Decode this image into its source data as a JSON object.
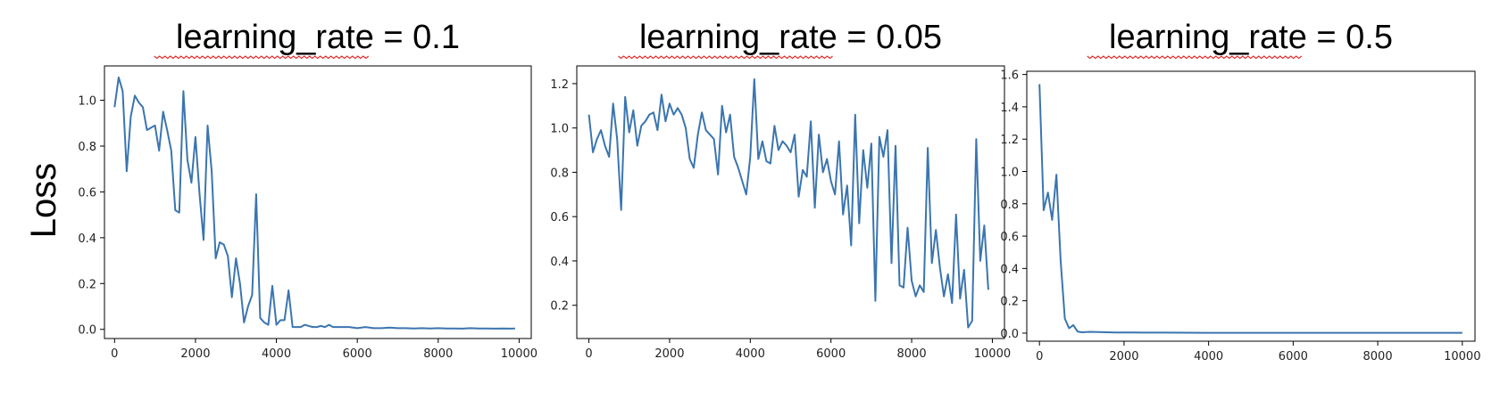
{
  "figure": {
    "ylabel": "Loss"
  },
  "chart_data": [
    {
      "type": "line",
      "title": "learning_rate = 0.1",
      "xlim": [
        -250,
        10300
      ],
      "ylim": [
        -0.04,
        1.15
      ],
      "xticks": [
        0,
        2000,
        4000,
        6000,
        8000,
        10000
      ],
      "yticks": [
        0.0,
        0.2,
        0.4,
        0.6,
        0.8,
        1.0
      ],
      "series": [
        {
          "color": "#3b75af",
          "x": [
            0,
            100,
            200,
            300,
            400,
            500,
            600,
            700,
            800,
            900,
            1000,
            1100,
            1200,
            1300,
            1400,
            1500,
            1600,
            1700,
            1800,
            1900,
            2000,
            2100,
            2200,
            2300,
            2400,
            2500,
            2600,
            2700,
            2800,
            2900,
            3000,
            3100,
            3200,
            3300,
            3400,
            3500,
            3600,
            3700,
            3800,
            3900,
            4000,
            4100,
            4200,
            4300,
            4400,
            4500,
            4600,
            4700,
            4800,
            4900,
            5000,
            5100,
            5200,
            5300,
            5400,
            5600,
            5800,
            6000,
            6200,
            6400,
            6600,
            6800,
            7000,
            7200,
            7400,
            7600,
            7800,
            8000,
            8200,
            8400,
            8600,
            8800,
            9000,
            9200,
            9400,
            9600,
            9800,
            9900
          ],
          "y": [
            0.97,
            1.1,
            1.04,
            0.69,
            0.93,
            1.02,
            0.99,
            0.97,
            0.87,
            0.88,
            0.89,
            0.78,
            0.95,
            0.87,
            0.78,
            0.52,
            0.51,
            1.04,
            0.74,
            0.64,
            0.84,
            0.59,
            0.39,
            0.89,
            0.69,
            0.31,
            0.38,
            0.37,
            0.32,
            0.14,
            0.31,
            0.2,
            0.03,
            0.1,
            0.15,
            0.59,
            0.05,
            0.03,
            0.02,
            0.19,
            0.02,
            0.04,
            0.04,
            0.17,
            0.01,
            0.01,
            0.01,
            0.02,
            0.015,
            0.01,
            0.01,
            0.015,
            0.01,
            0.02,
            0.01,
            0.01,
            0.01,
            0.005,
            0.01,
            0.005,
            0.005,
            0.008,
            0.005,
            0.005,
            0.004,
            0.005,
            0.004,
            0.005,
            0.004,
            0.004,
            0.003,
            0.005,
            0.004,
            0.004,
            0.003,
            0.004,
            0.003,
            0.004
          ]
        }
      ]
    },
    {
      "type": "line",
      "title": "learning_rate = 0.05",
      "xlim": [
        -300,
        10300
      ],
      "ylim": [
        0.05,
        1.28
      ],
      "xticks": [
        0,
        2000,
        4000,
        6000,
        8000,
        10000
      ],
      "yticks": [
        0.2,
        0.4,
        0.6,
        0.8,
        1.0,
        1.2
      ],
      "series": [
        {
          "color": "#3b75af",
          "x": [
            0,
            100,
            200,
            300,
            400,
            500,
            600,
            700,
            800,
            900,
            1000,
            1100,
            1200,
            1300,
            1400,
            1500,
            1600,
            1700,
            1800,
            1900,
            2000,
            2100,
            2200,
            2300,
            2400,
            2500,
            2600,
            2700,
            2800,
            2900,
            3000,
            3100,
            3200,
            3300,
            3400,
            3500,
            3600,
            3700,
            3800,
            3900,
            4000,
            4100,
            4200,
            4300,
            4400,
            4500,
            4600,
            4700,
            4800,
            4900,
            5000,
            5100,
            5200,
            5300,
            5400,
            5500,
            5600,
            5700,
            5800,
            5900,
            6000,
            6100,
            6200,
            6300,
            6400,
            6500,
            6600,
            6700,
            6800,
            6900,
            7000,
            7100,
            7200,
            7300,
            7400,
            7500,
            7600,
            7700,
            7800,
            7900,
            8000,
            8100,
            8200,
            8300,
            8400,
            8500,
            8600,
            8700,
            8800,
            8900,
            9000,
            9100,
            9200,
            9300,
            9400,
            9500,
            9600,
            9700,
            9800,
            9900
          ],
          "y": [
            1.06,
            0.89,
            0.95,
            0.99,
            0.92,
            0.87,
            1.11,
            0.95,
            0.63,
            1.14,
            0.98,
            1.08,
            0.92,
            1.01,
            1.03,
            1.06,
            1.07,
            0.99,
            1.15,
            1.03,
            1.11,
            1.06,
            1.09,
            1.06,
            1.0,
            0.86,
            0.82,
            0.97,
            1.07,
            0.99,
            0.97,
            0.95,
            0.79,
            1.1,
            0.98,
            1.06,
            0.87,
            0.82,
            0.76,
            0.7,
            0.87,
            1.22,
            0.86,
            0.94,
            0.85,
            0.84,
            1.01,
            0.9,
            0.94,
            0.92,
            0.89,
            0.97,
            0.69,
            0.81,
            0.78,
            1.03,
            0.64,
            0.97,
            0.8,
            0.86,
            0.76,
            0.7,
            0.94,
            0.61,
            0.74,
            0.47,
            1.06,
            0.57,
            0.9,
            0.73,
            0.93,
            0.22,
            0.96,
            0.87,
            0.99,
            0.39,
            0.92,
            0.29,
            0.28,
            0.55,
            0.31,
            0.24,
            0.29,
            0.26,
            0.91,
            0.39,
            0.54,
            0.37,
            0.24,
            0.34,
            0.21,
            0.61,
            0.23,
            0.36,
            0.1,
            0.13,
            0.95,
            0.4,
            0.56,
            0.27
          ]
        }
      ]
    },
    {
      "type": "line",
      "title": "learning_rate = 0.5",
      "xlim": [
        -300,
        10300
      ],
      "ylim": [
        -0.05,
        1.62
      ],
      "xticks": [
        0,
        2000,
        4000,
        6000,
        8000,
        10000
      ],
      "yticks": [
        0.0,
        0.2,
        0.4,
        0.6,
        0.8,
        1.0,
        1.2,
        1.4,
        1.6
      ],
      "series": [
        {
          "color": "#3b75af",
          "x": [
            0,
            100,
            200,
            300,
            400,
            500,
            600,
            700,
            800,
            900,
            1000,
            1200,
            1400,
            1600,
            1800,
            2000,
            2500,
            3000,
            4000,
            5000,
            6000,
            7000,
            8000,
            9000,
            10000
          ],
          "y": [
            1.54,
            0.76,
            0.87,
            0.7,
            0.98,
            0.45,
            0.09,
            0.03,
            0.05,
            0.01,
            0.005,
            0.008,
            0.006,
            0.005,
            0.004,
            0.004,
            0.003,
            0.003,
            0.002,
            0.002,
            0.002,
            0.002,
            0.002,
            0.002,
            0.002
          ]
        }
      ]
    }
  ]
}
